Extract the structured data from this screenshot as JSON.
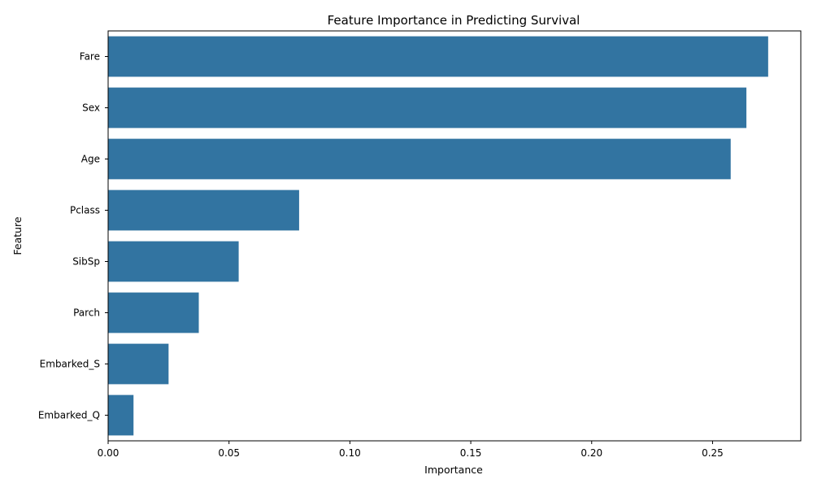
{
  "chart_data": {
    "type": "bar",
    "orientation": "horizontal",
    "title": "Feature Importance in Predicting Survival",
    "xlabel": "Importance",
    "ylabel": "Feature",
    "categories": [
      "Fare",
      "Sex",
      "Age",
      "Pclass",
      "SibSp",
      "Parch",
      "Embarked_S",
      "Embarked_Q"
    ],
    "values": [
      0.273,
      0.264,
      0.2575,
      0.079,
      0.054,
      0.0375,
      0.025,
      0.0105
    ],
    "xlim": [
      0,
      0.2865
    ],
    "xticks": [
      0.0,
      0.05,
      0.1,
      0.15,
      0.2,
      0.25
    ],
    "xtick_labels": [
      "0.00",
      "0.05",
      "0.10",
      "0.15",
      "0.20",
      "0.25"
    ],
    "grid": false,
    "bar_color": "#3274a1"
  }
}
